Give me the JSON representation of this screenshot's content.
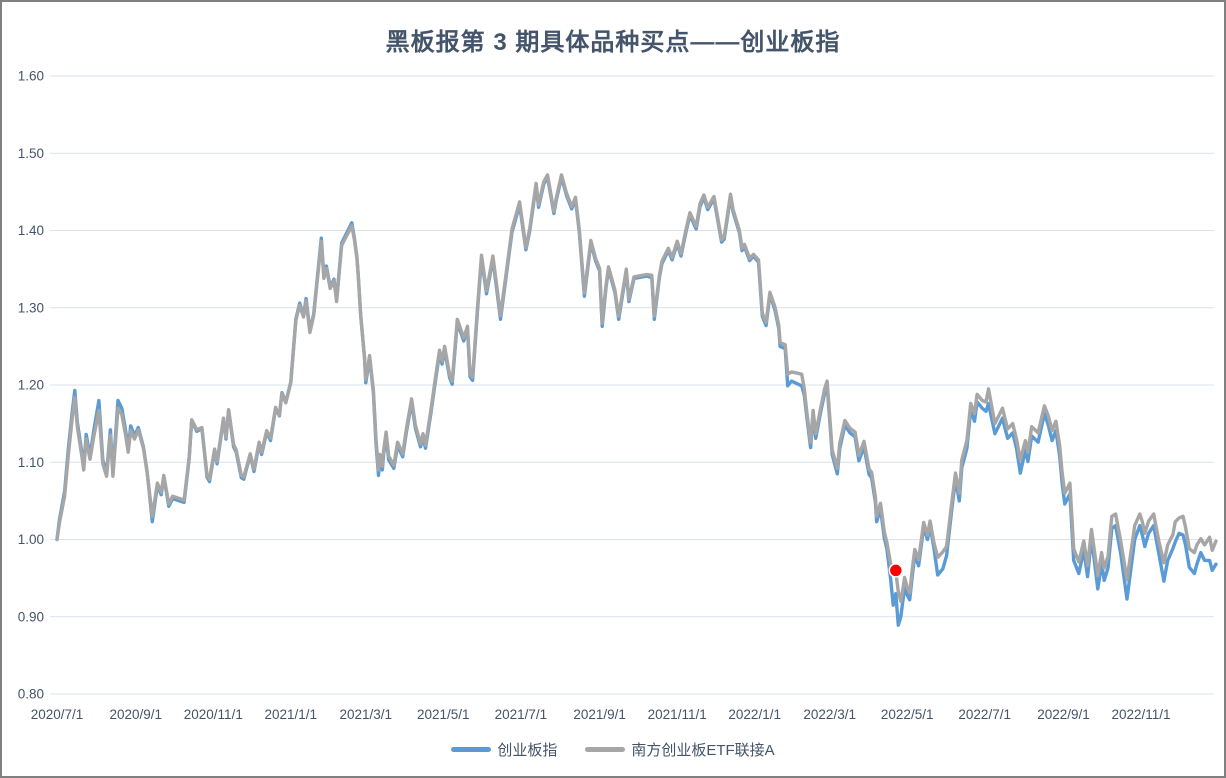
{
  "colors": {
    "index_line": "#5B9BD5",
    "etf_line": "#A6A6A6",
    "marker": "#FF0000",
    "title_text": "#44546A",
    "axis_text": "#44546A",
    "gridline": "#dbe2ea",
    "background": "#ffffff"
  },
  "chart_data": {
    "type": "line",
    "title": "黑板报第 3 期具体品种买点——创业板指",
    "grid": "horizontal",
    "legend_position": "bottom",
    "x_axis": {
      "tick_labels": [
        "2020/7/1",
        "2020/9/1",
        "2020/11/1",
        "2021/1/1",
        "2021/3/1",
        "2021/5/1",
        "2021/7/1",
        "2021/9/1",
        "2021/11/1",
        "2022/1/1",
        "2022/3/1",
        "2022/5/1",
        "2022/7/1",
        "2022/9/1",
        "2022/11/1"
      ]
    },
    "y_axis": {
      "min": 0.8,
      "max": 1.6,
      "step": 0.1,
      "tick_labels": [
        "0.80",
        "0.90",
        "1.00",
        "1.10",
        "1.20",
        "1.30",
        "1.40",
        "1.50",
        "1.60"
      ]
    },
    "marker": {
      "date": "2022/4/22",
      "value": 0.96,
      "color": "#FF0000",
      "meaning": "buy-point"
    },
    "dates": [
      "2020/7/1",
      "2020/7/3",
      "2020/7/7",
      "2020/7/10",
      "2020/7/13",
      "2020/7/15",
      "2020/7/17",
      "2020/7/21",
      "2020/7/22",
      "2020/7/24",
      "2020/7/27",
      "2020/7/30",
      "2020/8/3",
      "2020/8/6",
      "2020/8/9",
      "2020/8/12",
      "2020/8/14",
      "2020/8/18",
      "2020/8/21",
      "2020/8/24",
      "2020/8/26",
      "2020/8/28",
      "2020/8/31",
      "2020/9/3",
      "2020/9/7",
      "2020/9/10",
      "2020/9/14",
      "2020/9/18",
      "2020/9/21",
      "2020/9/23",
      "2020/9/27",
      "2020/9/30",
      "2020/10/9",
      "2020/10/13",
      "2020/10/15",
      "2020/10/19",
      "2020/10/23",
      "2020/10/27",
      "2020/10/29",
      "2020/11/2",
      "2020/11/4",
      "2020/11/9",
      "2020/11/11",
      "2020/11/13",
      "2020/11/17",
      "2020/11/19",
      "2020/11/23",
      "2020/11/25",
      "2020/11/27",
      "2020/11/30",
      "2020/12/3",
      "2020/12/7",
      "2020/12/9",
      "2020/12/13",
      "2020/12/16",
      "2020/12/20",
      "2020/12/23",
      "2020/12/25",
      "2020/12/28",
      "2021/1/1",
      "2021/1/5",
      "2021/1/8",
      "2021/1/11",
      "2021/1/13",
      "2021/1/16",
      "2021/1/19",
      "2021/1/25",
      "2021/1/27",
      "2021/1/29",
      "2021/2/1",
      "2021/2/4",
      "2021/2/6",
      "2021/2/10",
      "2021/2/18",
      "2021/2/20",
      "2021/2/22",
      "2021/2/23",
      "2021/2/25",
      "2021/2/28",
      "2021/3/1",
      "2021/3/4",
      "2021/3/7",
      "2021/3/9",
      "2021/3/11",
      "2021/3/12",
      "2021/3/14",
      "2021/3/15",
      "2021/3/17",
      "2021/3/19",
      "2021/3/23",
      "2021/3/26",
      "2021/3/30",
      "2021/4/2",
      "2021/4/6",
      "2021/4/9",
      "2021/4/13",
      "2021/4/15",
      "2021/4/17",
      "2021/4/21",
      "2021/4/24",
      "2021/4/28",
      "2021/4/30",
      "2021/5/2",
      "2021/5/6",
      "2021/5/8",
      "2021/5/12",
      "2021/5/17",
      "2021/5/20",
      "2021/5/22",
      "2021/5/24",
      "2021/5/28",
      "2021/5/31",
      "2021/6/4",
      "2021/6/9",
      "2021/6/15",
      "2021/6/20",
      "2021/6/24",
      "2021/6/30",
      "2021/7/5",
      "2021/7/8",
      "2021/7/13",
      "2021/7/15",
      "2021/7/19",
      "2021/7/22",
      "2021/7/27",
      "2021/7/29",
      "2021/8/2",
      "2021/8/6",
      "2021/8/10",
      "2021/8/13",
      "2021/8/16",
      "2021/8/20",
      "2021/8/25",
      "2021/8/29",
      "2021/9/1",
      "2021/9/3",
      "2021/9/6",
      "2021/9/8",
      "2021/9/13",
      "2021/9/16",
      "2021/9/22",
      "2021/9/24",
      "2021/9/28",
      "2021/10/8",
      "2021/10/12",
      "2021/10/14",
      "2021/10/18",
      "2021/10/20",
      "2021/10/25",
      "2021/10/28",
      "2021/11/1",
      "2021/11/4",
      "2021/11/8",
      "2021/11/11",
      "2021/11/16",
      "2021/11/19",
      "2021/11/22",
      "2021/11/25",
      "2021/11/30",
      "2021/12/6",
      "2021/12/8",
      "2021/12/13",
      "2021/12/15",
      "2021/12/20",
      "2021/12/22",
      "2021/12/24",
      "2021/12/28",
      "2021/12/31",
      "2022/1/4",
      "2022/1/7",
      "2022/1/10",
      "2022/1/13",
      "2022/1/17",
      "2022/1/20",
      "2022/1/21",
      "2022/1/25",
      "2022/1/27",
      "2022/1/30",
      "2022/2/7",
      "2022/2/9",
      "2022/2/11",
      "2022/2/14",
      "2022/2/16",
      "2022/2/18",
      "2022/2/22",
      "2022/2/25",
      "2022/2/27",
      "2022/3/3",
      "2022/3/7",
      "2022/3/9",
      "2022/3/13",
      "2022/3/17",
      "2022/3/21",
      "2022/3/24",
      "2022/3/28",
      "2022/4/1",
      "2022/4/3",
      "2022/4/6",
      "2022/4/7",
      "2022/4/10",
      "2022/4/13",
      "2022/4/15",
      "2022/4/18",
      "2022/4/20",
      "2022/4/22",
      "2022/4/24",
      "2022/4/26",
      "2022/4/28",
      "2022/4/29",
      "2022/5/1",
      "2022/5/3",
      "2022/5/5",
      "2022/5/7",
      "2022/5/10",
      "2022/5/14",
      "2022/5/17",
      "2022/5/19",
      "2022/5/22",
      "2022/5/25",
      "2022/5/29",
      "2022/6/1",
      "2022/6/5",
      "2022/6/8",
      "2022/6/11",
      "2022/6/13",
      "2022/6/17",
      "2022/6/20",
      "2022/6/23",
      "2022/6/25",
      "2022/6/29",
      "2022/7/2",
      "2022/7/4",
      "2022/7/9",
      "2022/7/15",
      "2022/7/19",
      "2022/7/23",
      "2022/7/26",
      "2022/7/29",
      "2022/8/2",
      "2022/8/4",
      "2022/8/7",
      "2022/8/12",
      "2022/8/17",
      "2022/8/20",
      "2022/8/23",
      "2022/8/26",
      "2022/8/29",
      "2022/8/31",
      "2022/9/2",
      "2022/9/6",
      "2022/9/9",
      "2022/9/13",
      "2022/9/17",
      "2022/9/20",
      "2022/9/23",
      "2022/9/28",
      "2022/10/1",
      "2022/10/3",
      "2022/10/6",
      "2022/10/9",
      "2022/10/12",
      "2022/10/16",
      "2022/10/21",
      "2022/10/27",
      "2022/10/31",
      "2022/11/2",
      "2022/11/4",
      "2022/11/7",
      "2022/11/11",
      "2022/11/15",
      "2022/11/19",
      "2022/11/22",
      "2022/11/26",
      "2022/11/28",
      "2022/12/1",
      "2022/12/4",
      "2022/12/6",
      "2022/12/9",
      "2022/12/13",
      "2022/12/15",
      "2022/12/18",
      "2022/12/21",
      "2022/12/25",
      "2022/12/27",
      "2022/12/30"
    ],
    "series": [
      {
        "name": "创业板指",
        "color": "#5B9BD5",
        "values": [
          1.0,
          1.026,
          1.062,
          1.118,
          1.166,
          1.193,
          1.152,
          1.108,
          1.094,
          1.136,
          1.108,
          1.142,
          1.18,
          1.103,
          1.086,
          1.142,
          1.086,
          1.18,
          1.17,
          1.141,
          1.118,
          1.147,
          1.134,
          1.145,
          1.12,
          1.087,
          1.023,
          1.07,
          1.058,
          1.081,
          1.043,
          1.053,
          1.048,
          1.105,
          1.154,
          1.14,
          1.144,
          1.081,
          1.075,
          1.115,
          1.098,
          1.156,
          1.13,
          1.167,
          1.12,
          1.113,
          1.08,
          1.078,
          1.091,
          1.109,
          1.088,
          1.124,
          1.11,
          1.139,
          1.128,
          1.17,
          1.16,
          1.19,
          1.178,
          1.204,
          1.286,
          1.306,
          1.29,
          1.312,
          1.27,
          1.292,
          1.39,
          1.34,
          1.354,
          1.327,
          1.337,
          1.31,
          1.384,
          1.41,
          1.39,
          1.366,
          1.343,
          1.29,
          1.235,
          1.203,
          1.235,
          1.19,
          1.124,
          1.083,
          1.105,
          1.09,
          1.11,
          1.134,
          1.103,
          1.092,
          1.122,
          1.107,
          1.14,
          1.178,
          1.144,
          1.12,
          1.133,
          1.118,
          1.161,
          1.196,
          1.241,
          1.227,
          1.246,
          1.209,
          1.201,
          1.281,
          1.257,
          1.272,
          1.211,
          1.206,
          1.298,
          1.364,
          1.318,
          1.363,
          1.285,
          1.348,
          1.398,
          1.433,
          1.375,
          1.4,
          1.458,
          1.43,
          1.46,
          1.469,
          1.422,
          1.44,
          1.469,
          1.445,
          1.428,
          1.44,
          1.398,
          1.315,
          1.384,
          1.36,
          1.348,
          1.276,
          1.326,
          1.35,
          1.32,
          1.285,
          1.347,
          1.308,
          1.338,
          1.341,
          1.339,
          1.285,
          1.339,
          1.357,
          1.374,
          1.362,
          1.383,
          1.367,
          1.399,
          1.42,
          1.402,
          1.431,
          1.443,
          1.427,
          1.441,
          1.385,
          1.389,
          1.443,
          1.424,
          1.397,
          1.374,
          1.379,
          1.361,
          1.367,
          1.359,
          1.289,
          1.277,
          1.317,
          1.297,
          1.273,
          1.25,
          1.247,
          1.199,
          1.205,
          1.199,
          1.187,
          1.159,
          1.119,
          1.162,
          1.131,
          1.166,
          1.189,
          1.2,
          1.11,
          1.085,
          1.118,
          1.148,
          1.138,
          1.133,
          1.102,
          1.12,
          1.084,
          1.08,
          1.048,
          1.023,
          1.04,
          1.002,
          0.988,
          0.948,
          0.915,
          0.93,
          0.889,
          0.9,
          0.926,
          0.943,
          0.928,
          0.922,
          0.953,
          0.98,
          0.966,
          1.016,
          1.0,
          1.018,
          0.989,
          0.954,
          0.962,
          0.979,
          1.038,
          1.078,
          1.05,
          1.093,
          1.118,
          1.168,
          1.153,
          1.178,
          1.17,
          1.166,
          1.176,
          1.137,
          1.157,
          1.131,
          1.138,
          1.118,
          1.086,
          1.116,
          1.101,
          1.134,
          1.126,
          1.163,
          1.148,
          1.128,
          1.141,
          1.108,
          1.072,
          1.046,
          1.059,
          0.973,
          0.956,
          0.986,
          0.952,
          1.003,
          0.936,
          0.969,
          0.947,
          0.963,
          1.014,
          1.018,
          0.982,
          0.923,
          1.0,
          1.018,
          1.006,
          0.991,
          1.008,
          1.018,
          0.982,
          0.946,
          0.973,
          0.988,
          0.997,
          1.008,
          1.006,
          0.993,
          0.964,
          0.956,
          0.968,
          0.983,
          0.973,
          0.973,
          0.96,
          0.968
        ]
      },
      {
        "name": "南方创业板ETF联接A",
        "color": "#A6A6A6",
        "values": [
          1.0,
          1.022,
          1.056,
          1.11,
          1.158,
          1.184,
          1.146,
          1.103,
          1.09,
          1.13,
          1.104,
          1.134,
          1.167,
          1.098,
          1.082,
          1.135,
          1.082,
          1.17,
          1.162,
          1.135,
          1.113,
          1.141,
          1.13,
          1.142,
          1.118,
          1.086,
          1.03,
          1.073,
          1.061,
          1.083,
          1.046,
          1.056,
          1.051,
          1.107,
          1.155,
          1.142,
          1.145,
          1.084,
          1.078,
          1.117,
          1.101,
          1.157,
          1.132,
          1.168,
          1.123,
          1.116,
          1.083,
          1.081,
          1.093,
          1.111,
          1.091,
          1.126,
          1.113,
          1.141,
          1.131,
          1.171,
          1.161,
          1.189,
          1.177,
          1.203,
          1.284,
          1.303,
          1.288,
          1.309,
          1.268,
          1.29,
          1.386,
          1.338,
          1.351,
          1.325,
          1.335,
          1.308,
          1.381,
          1.406,
          1.388,
          1.364,
          1.342,
          1.29,
          1.237,
          1.207,
          1.238,
          1.193,
          1.13,
          1.09,
          1.11,
          1.095,
          1.115,
          1.139,
          1.108,
          1.096,
          1.126,
          1.111,
          1.144,
          1.182,
          1.148,
          1.124,
          1.137,
          1.122,
          1.165,
          1.2,
          1.245,
          1.231,
          1.25,
          1.213,
          1.205,
          1.285,
          1.261,
          1.276,
          1.215,
          1.21,
          1.302,
          1.368,
          1.322,
          1.367,
          1.29,
          1.352,
          1.402,
          1.437,
          1.378,
          1.403,
          1.461,
          1.433,
          1.463,
          1.472,
          1.425,
          1.443,
          1.472,
          1.448,
          1.431,
          1.443,
          1.401,
          1.319,
          1.387,
          1.363,
          1.351,
          1.28,
          1.329,
          1.353,
          1.323,
          1.289,
          1.35,
          1.311,
          1.34,
          1.343,
          1.342,
          1.289,
          1.342,
          1.36,
          1.377,
          1.365,
          1.386,
          1.37,
          1.402,
          1.423,
          1.405,
          1.435,
          1.446,
          1.43,
          1.444,
          1.388,
          1.392,
          1.447,
          1.427,
          1.4,
          1.377,
          1.382,
          1.364,
          1.369,
          1.362,
          1.293,
          1.281,
          1.32,
          1.301,
          1.277,
          1.255,
          1.252,
          1.214,
          1.217,
          1.214,
          1.195,
          1.165,
          1.126,
          1.167,
          1.137,
          1.171,
          1.195,
          1.205,
          1.116,
          1.092,
          1.125,
          1.154,
          1.144,
          1.139,
          1.109,
          1.127,
          1.091,
          1.087,
          1.055,
          1.03,
          1.047,
          1.01,
          0.996,
          0.968,
          0.965,
          0.958,
          0.932,
          0.92,
          0.94,
          0.951,
          0.938,
          0.931,
          0.962,
          0.987,
          0.974,
          1.022,
          1.006,
          1.024,
          0.996,
          0.977,
          0.984,
          0.991,
          1.047,
          1.086,
          1.06,
          1.103,
          1.128,
          1.176,
          1.163,
          1.188,
          1.18,
          1.178,
          1.195,
          1.15,
          1.17,
          1.143,
          1.15,
          1.13,
          1.103,
          1.128,
          1.113,
          1.146,
          1.138,
          1.173,
          1.16,
          1.141,
          1.153,
          1.121,
          1.086,
          1.06,
          1.073,
          0.988,
          0.971,
          0.998,
          0.966,
          1.013,
          0.953,
          0.983,
          0.963,
          0.978,
          1.03,
          1.033,
          0.998,
          0.948,
          1.018,
          1.033,
          1.023,
          1.008,
          1.024,
          1.033,
          0.998,
          0.97,
          0.993,
          1.006,
          1.023,
          1.028,
          1.03,
          1.016,
          0.988,
          0.983,
          0.993,
          1.001,
          0.993,
          1.003,
          0.986,
          0.998
        ]
      }
    ]
  }
}
